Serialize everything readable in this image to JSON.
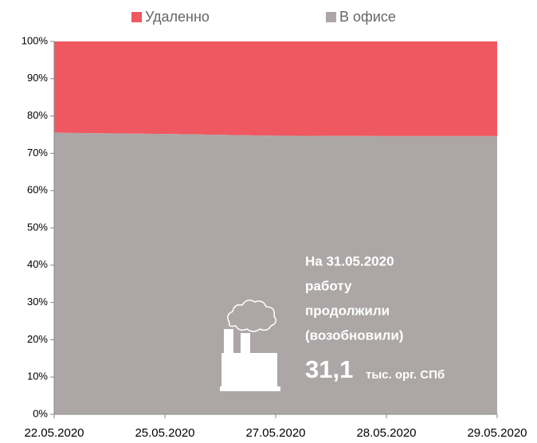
{
  "chart_data": {
    "type": "stacked_area",
    "categories": [
      "22.05.2020",
      "25.05.2020",
      "27.05.2020",
      "28.05.2020",
      "29.05.2020"
    ],
    "series": [
      {
        "name": "В офисе",
        "color": "#aca7a6",
        "values": [
          75.5,
          75.2,
          74.7,
          74.6,
          74.6
        ]
      },
      {
        "name": "Удаленно",
        "color": "#ef5861",
        "values": [
          24.5,
          24.8,
          25.3,
          25.4,
          25.4
        ]
      }
    ],
    "ylim": [
      0,
      100
    ],
    "yticks": [
      {
        "value": 0,
        "label": "0%"
      },
      {
        "value": 10,
        "label": "10%"
      },
      {
        "value": 20,
        "label": "20%"
      },
      {
        "value": 30,
        "label": "30%"
      },
      {
        "value": 40,
        "label": "40%"
      },
      {
        "value": 50,
        "label": "50%"
      },
      {
        "value": 60,
        "label": "60%"
      },
      {
        "value": 70,
        "label": "70%"
      },
      {
        "value": 80,
        "label": "80%"
      },
      {
        "value": 90,
        "label": "90%"
      },
      {
        "value": 100,
        "label": "100%"
      }
    ],
    "annotation": {
      "lines": [
        "На 31.05.2020",
        "работу",
        "продолжили",
        "(возобновили)"
      ],
      "number": "31,1",
      "unit": "тыс. орг. СПб"
    }
  }
}
